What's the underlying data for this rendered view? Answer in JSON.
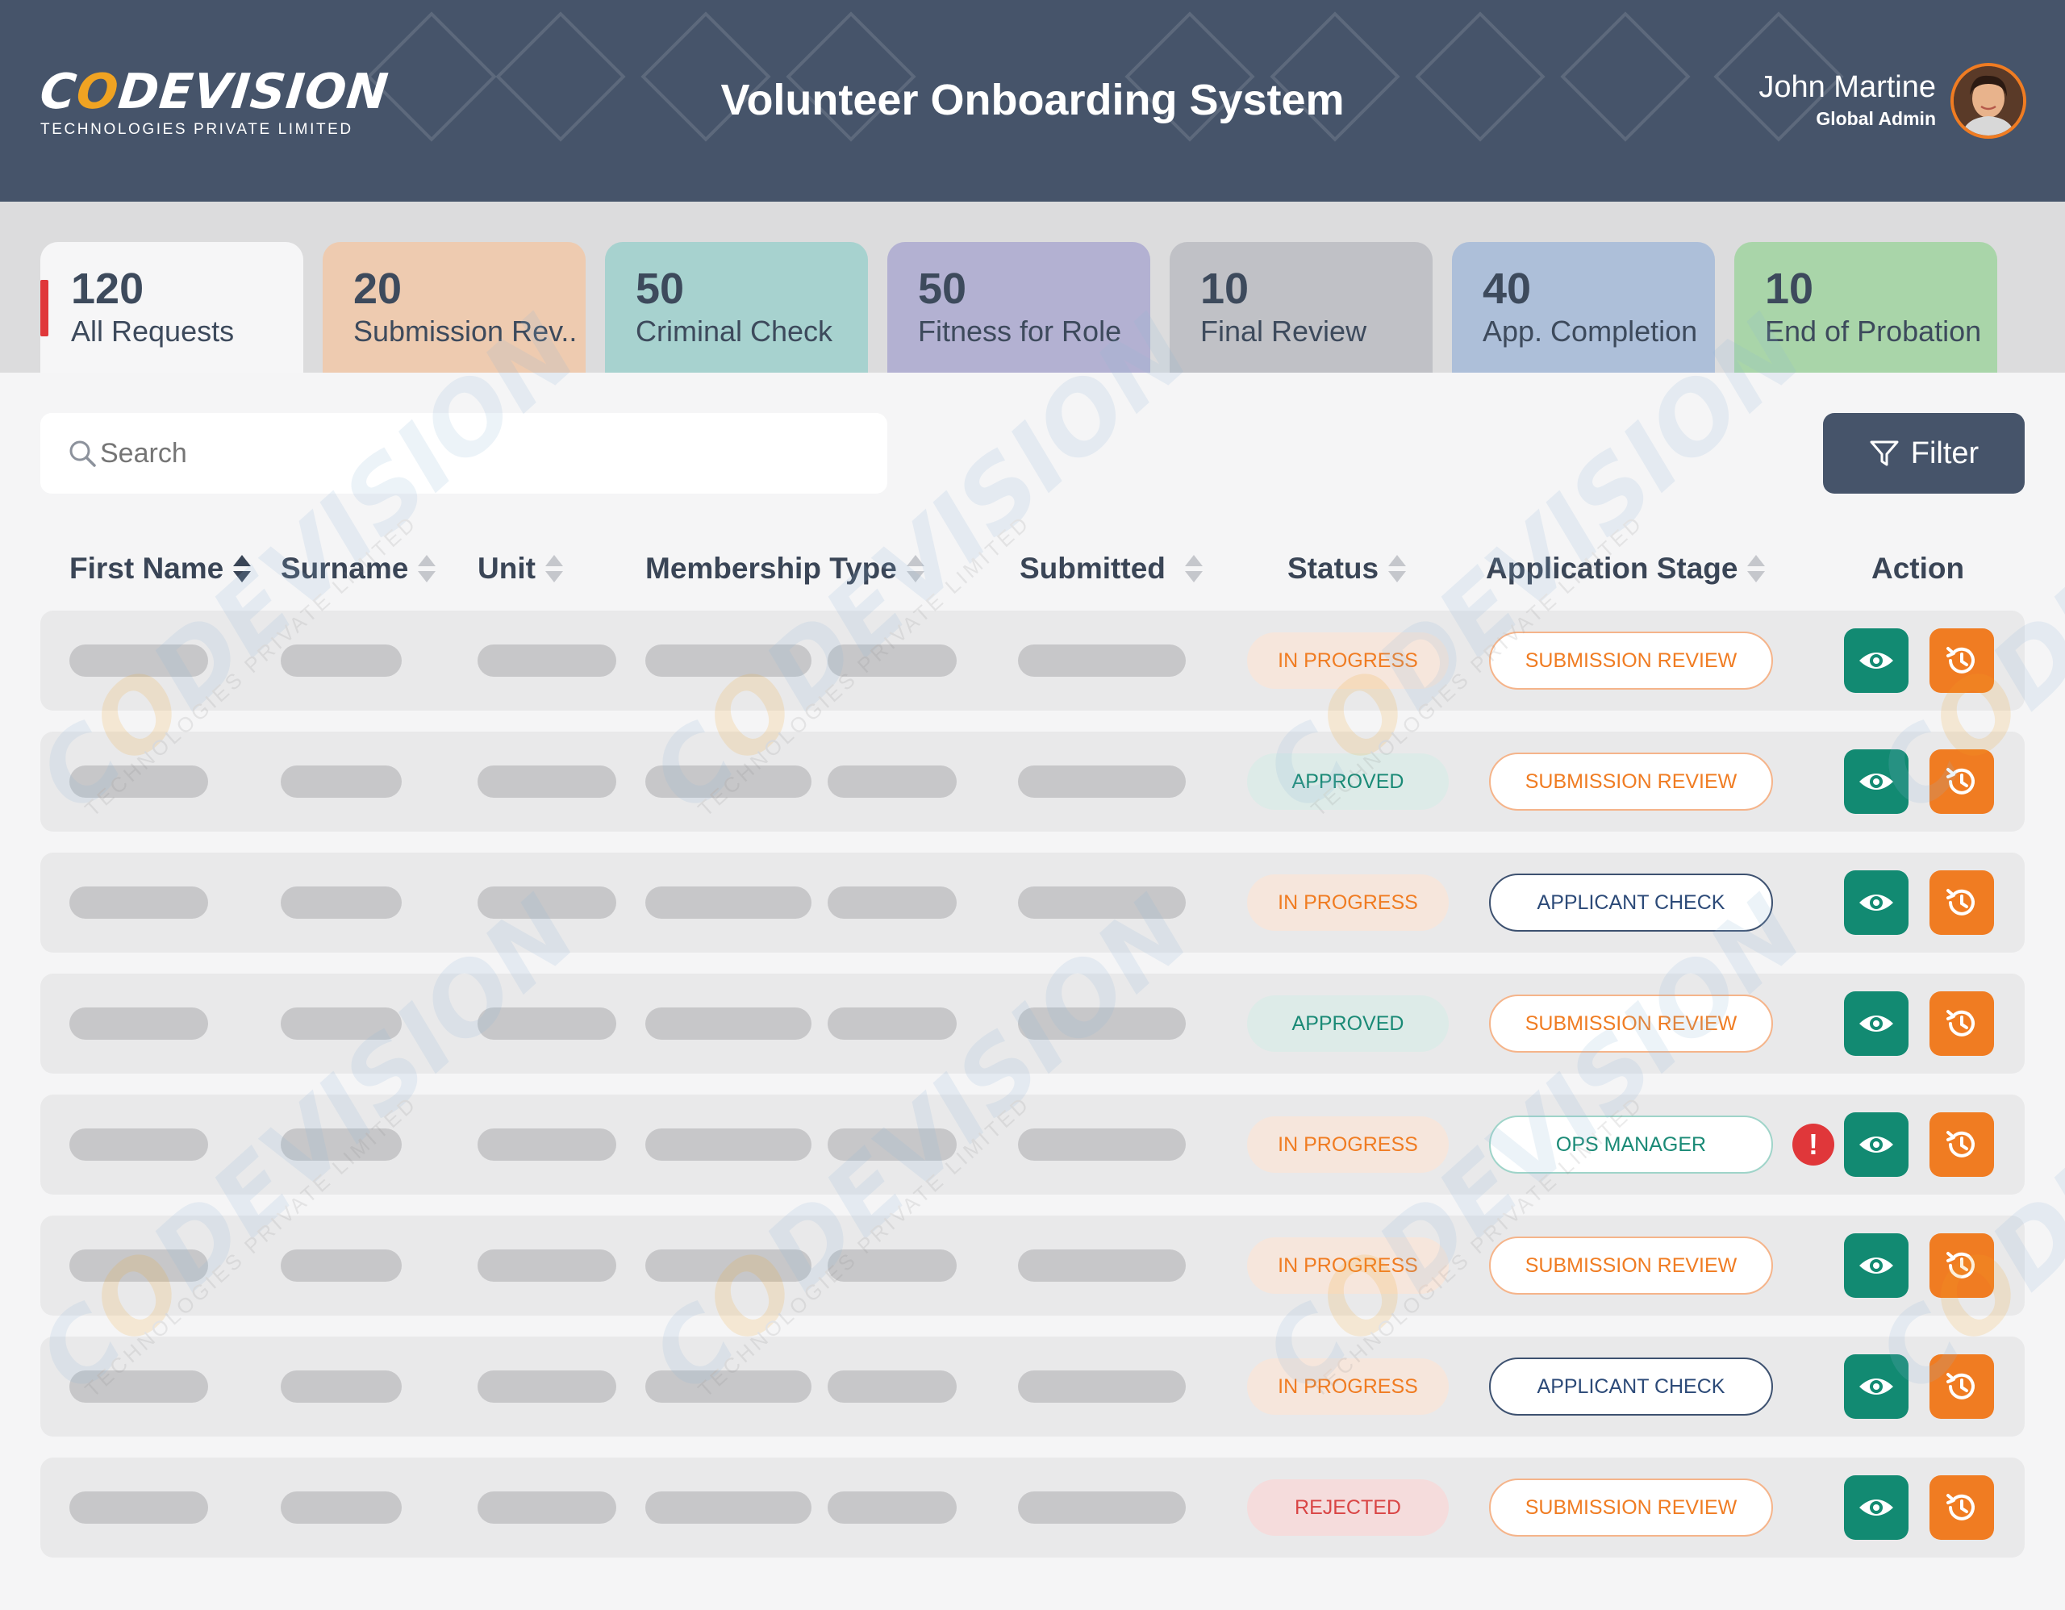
{
  "header": {
    "logo_main_a": "C",
    "logo_main_o": "O",
    "logo_main_b": "DEVISION",
    "logo_sub": "TECHNOLOGIES PRIVATE LIMITED",
    "title": "Volunteer Onboarding System",
    "user_name": "John Martine",
    "user_role": "Global Admin"
  },
  "tabs": [
    {
      "count": "120",
      "label": "All Requests",
      "color": "#f6f6f7"
    },
    {
      "count": "20",
      "label": "Submission Rev...",
      "color": "#eecbb0"
    },
    {
      "count": "50",
      "label": "Criminal Check",
      "color": "#a7d2cf"
    },
    {
      "count": "50",
      "label": "Fitness for Role",
      "color": "#b3b1d2"
    },
    {
      "count": "10",
      "label": "Final Review",
      "color": "#c0c1c6"
    },
    {
      "count": "40",
      "label": "App. Completion",
      "color": "#adbfd9"
    },
    {
      "count": "10",
      "label": "End of Probation",
      "color": "#a9d5a9"
    }
  ],
  "search": {
    "placeholder": "Search"
  },
  "filter": {
    "label": "Filter"
  },
  "columns": {
    "first_name": "First Name",
    "surname": "Surname",
    "unit": "Unit",
    "membership_type": "Membership Type",
    "submitted": "Submitted",
    "status": "Status",
    "application_stage": "Application Stage",
    "action": "Action"
  },
  "rows": [
    {
      "status": "IN PROGRESS",
      "stage": "SUBMISSION REVIEW"
    },
    {
      "status": "APPROVED",
      "stage": "SUBMISSION REVIEW"
    },
    {
      "status": "IN PROGRESS",
      "stage": "APPLICANT CHECK"
    },
    {
      "status": "APPROVED",
      "stage": "SUBMISSION REVIEW"
    },
    {
      "status": "IN PROGRESS",
      "stage": "OPS MANAGER",
      "alert": "!"
    },
    {
      "status": "IN PROGRESS",
      "stage": "SUBMISSION REVIEW"
    },
    {
      "status": "IN PROGRESS",
      "stage": "APPLICANT CHECK"
    },
    {
      "status": "REJECTED",
      "stage": "SUBMISSION REVIEW"
    }
  ],
  "colors": {
    "header_bg": "#46546a",
    "accent_orange": "#f07c22",
    "accent_teal": "#128a72",
    "accent_red": "#e0373a"
  }
}
